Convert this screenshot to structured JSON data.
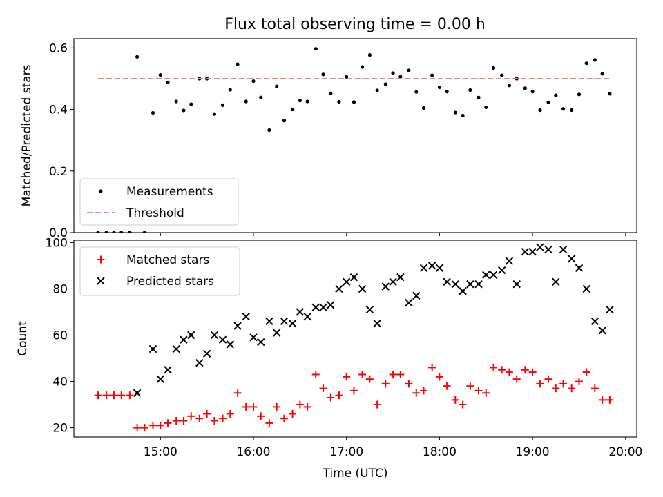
{
  "figure": {
    "title": "Flux total observing time = 0.00 h"
  },
  "chart_data": [
    {
      "type": "scatter",
      "panel": "top",
      "ylabel": "Matched/Predicted stars",
      "xlim": [
        14.07,
        20.12
      ],
      "ylim": [
        0,
        0.63
      ],
      "yticks": [
        0.0,
        0.2,
        0.4,
        0.6
      ],
      "ytick_labels": [
        "0.0",
        "0.2",
        "0.4",
        "0.6"
      ],
      "legend_position": "lower-left",
      "legend": [
        "Measurements",
        "Threshold"
      ],
      "series": [
        {
          "name": "Measurements",
          "color": "#000000",
          "marker": "dot",
          "x": [
            14.33,
            14.42,
            14.5,
            14.58,
            14.67,
            14.75,
            14.83,
            14.92,
            15.0,
            15.08,
            15.17,
            15.25,
            15.33,
            15.42,
            15.5,
            15.58,
            15.67,
            15.75,
            15.83,
            15.92,
            16.0,
            16.08,
            16.17,
            16.25,
            16.33,
            16.42,
            16.5,
            16.58,
            16.67,
            16.75,
            16.83,
            16.92,
            17.0,
            17.08,
            17.17,
            17.25,
            17.33,
            17.42,
            17.5,
            17.58,
            17.67,
            17.75,
            17.83,
            17.92,
            18.0,
            18.08,
            18.17,
            18.25,
            18.33,
            18.42,
            18.5,
            18.58,
            18.67,
            18.75,
            18.83,
            18.92,
            19.0,
            19.08,
            19.17,
            19.25,
            19.33,
            19.42,
            19.5,
            19.58,
            19.67,
            19.75,
            19.83
          ],
          "y": [
            0.0,
            0.0,
            0.0,
            0.0,
            0.0,
            0.571,
            0.0,
            0.389,
            0.512,
            0.488,
            0.426,
            0.397,
            0.417,
            0.5,
            0.5,
            0.385,
            0.414,
            0.464,
            0.547,
            0.426,
            0.492,
            0.439,
            0.333,
            0.475,
            0.364,
            0.4,
            0.429,
            0.426,
            0.597,
            0.514,
            0.452,
            0.425,
            0.506,
            0.424,
            0.538,
            0.577,
            0.462,
            0.482,
            0.518,
            0.506,
            0.527,
            0.457,
            0.405,
            0.511,
            0.472,
            0.458,
            0.39,
            0.38,
            0.463,
            0.439,
            0.407,
            0.535,
            0.511,
            0.478,
            0.5,
            0.469,
            0.458,
            0.398,
            0.423,
            0.446,
            0.402,
            0.398,
            0.449,
            0.55,
            0.561,
            0.516,
            0.451
          ]
        },
        {
          "name": "Threshold",
          "color": "#ff7f7f",
          "style": "dashed",
          "x": [
            14.33,
            19.83
          ],
          "y": [
            0.5,
            0.5
          ]
        }
      ]
    },
    {
      "type": "scatter",
      "panel": "bottom",
      "xlabel": "Time (UTC)",
      "ylabel": "Count",
      "xlim": [
        14.07,
        20.12
      ],
      "ylim": [
        16,
        101
      ],
      "xticks": [
        15,
        16,
        17,
        18,
        19,
        20
      ],
      "xtick_labels": [
        "15:00",
        "16:00",
        "17:00",
        "18:00",
        "19:00",
        "20:00"
      ],
      "yticks": [
        20,
        40,
        60,
        80,
        100
      ],
      "ytick_labels": [
        "20",
        "40",
        "60",
        "80",
        "100"
      ],
      "legend_position": "top-left",
      "legend": [
        "Matched stars",
        "Predicted stars"
      ],
      "series": [
        {
          "name": "Matched stars",
          "color": "#ff0000",
          "marker": "plus",
          "x": [
            14.33,
            14.42,
            14.5,
            14.58,
            14.67,
            14.75,
            14.83,
            14.92,
            15.0,
            15.08,
            15.17,
            15.25,
            15.33,
            15.42,
            15.5,
            15.58,
            15.67,
            15.75,
            15.83,
            15.92,
            16.0,
            16.08,
            16.17,
            16.25,
            16.33,
            16.42,
            16.5,
            16.58,
            16.67,
            16.75,
            16.83,
            16.92,
            17.0,
            17.08,
            17.17,
            17.25,
            17.33,
            17.42,
            17.5,
            17.58,
            17.67,
            17.75,
            17.83,
            17.92,
            18.0,
            18.08,
            18.17,
            18.25,
            18.33,
            18.42,
            18.5,
            18.58,
            18.67,
            18.75,
            18.83,
            18.92,
            19.0,
            19.08,
            19.17,
            19.25,
            19.33,
            19.42,
            19.5,
            19.58,
            19.67,
            19.75,
            19.83
          ],
          "y": [
            34,
            34,
            34,
            34,
            34,
            20,
            20,
            21,
            21,
            22,
            23,
            23,
            25,
            24,
            26,
            23,
            24,
            26,
            35,
            29,
            29,
            25,
            22,
            29,
            24,
            26,
            30,
            29,
            43,
            37,
            33,
            34,
            42,
            36,
            43,
            41,
            30,
            39,
            43,
            43,
            39,
            35,
            36,
            46,
            42,
            38,
            32,
            30,
            38,
            36,
            35,
            46,
            45,
            44,
            41,
            45,
            44,
            39,
            41,
            37,
            39,
            37,
            40,
            44,
            37,
            32,
            32
          ]
        },
        {
          "name": "Predicted stars",
          "color": "#000000",
          "marker": "x",
          "x": [
            14.75,
            14.92,
            15.0,
            15.08,
            15.17,
            15.25,
            15.33,
            15.42,
            15.5,
            15.58,
            15.67,
            15.75,
            15.83,
            15.92,
            16.0,
            16.08,
            16.17,
            16.25,
            16.33,
            16.42,
            16.5,
            16.58,
            16.67,
            16.75,
            16.83,
            16.92,
            17.0,
            17.08,
            17.17,
            17.25,
            17.33,
            17.42,
            17.5,
            17.58,
            17.67,
            17.75,
            17.83,
            17.92,
            18.0,
            18.08,
            18.17,
            18.25,
            18.33,
            18.42,
            18.5,
            18.58,
            18.67,
            18.75,
            18.83,
            18.92,
            19.0,
            19.08,
            19.17,
            19.25,
            19.33,
            19.42,
            19.5,
            19.58,
            19.67,
            19.75,
            19.83
          ],
          "y": [
            35,
            54,
            41,
            45,
            54,
            58,
            60,
            48,
            52,
            60,
            58,
            56,
            64,
            68,
            59,
            57,
            66,
            61,
            66,
            65,
            70,
            68,
            72,
            72,
            73,
            80,
            83,
            85,
            80,
            71,
            65,
            81,
            83,
            85,
            74,
            77,
            89,
            90,
            89,
            83,
            82,
            79,
            82,
            82,
            86,
            86,
            88,
            92,
            82,
            96,
            96,
            98,
            97,
            83,
            97,
            93,
            89,
            80,
            66,
            62,
            71
          ]
        }
      ]
    }
  ],
  "colors": {
    "measurements": "#000000",
    "threshold": "#ff7f7f",
    "matched": "#ff0000",
    "predicted": "#000000",
    "legend_border": "#cccccc"
  }
}
